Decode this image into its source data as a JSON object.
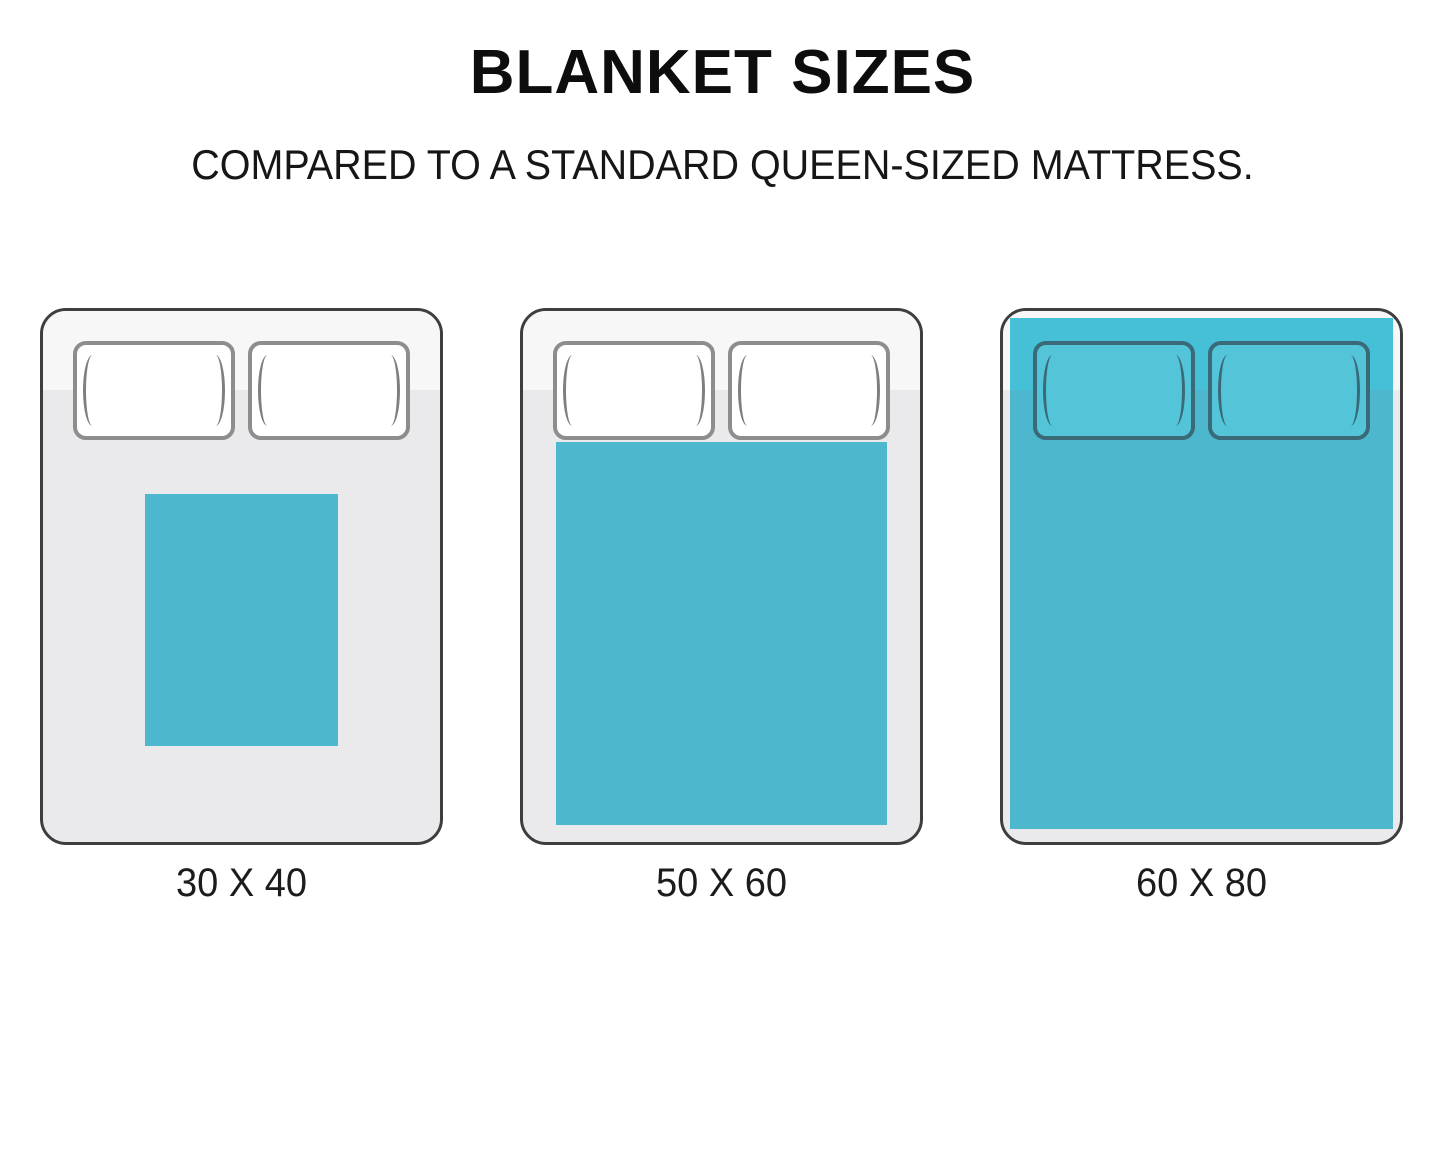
{
  "header": {
    "title": "BLANKET SIZES",
    "subtitle": "COMPARED TO A STANDARD QUEEN-SIZED MATTRESS."
  },
  "beds": [
    {
      "id": "30x40",
      "label": "30 X 40",
      "blanket_width_in": 30,
      "blanket_height_in": 40
    },
    {
      "id": "50x60",
      "label": "50 X 60",
      "blanket_width_in": 50,
      "blanket_height_in": 60
    },
    {
      "id": "60x80",
      "label": "60 X 80",
      "blanket_width_in": 60,
      "blanket_height_in": 80
    }
  ],
  "colors": {
    "blanket_teal": "#4db7cd",
    "blanket_teal_bright": "#45c0d7",
    "mattress_top": "#f7f7f8",
    "mattress_body": "#eaeaec",
    "bed_border": "#3e3e3e",
    "pillow_fill": "#ffffff",
    "pillow_border": "#8d8d8d",
    "pillow_crease": "#7f7f7f",
    "bed3_pillow_fill": "#54c5d9",
    "bed3_pillow_border": "#3a6a77",
    "label_color": "#1c1c1c"
  }
}
